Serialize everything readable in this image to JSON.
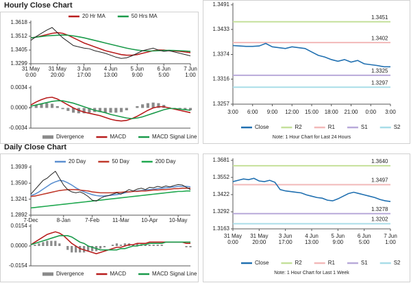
{
  "chart_data": [
    {
      "type": "line",
      "title": "Hourly Close Chart",
      "xlim": [
        0,
        30
      ],
      "xticks": [
        {
          "value": 0,
          "label": [
            "31 May",
            "0:00"
          ]
        },
        {
          "value": 5,
          "label": [
            "31 May",
            "20:00"
          ]
        },
        {
          "value": 10,
          "label": [
            "3 Jun",
            "17:00"
          ]
        },
        {
          "value": 15,
          "label": [
            "4 Jun",
            "13:00"
          ]
        },
        {
          "value": 20,
          "label": [
            "5 Jun",
            "9:00"
          ]
        },
        {
          "value": 25,
          "label": [
            "6 Jun",
            "5:00"
          ]
        },
        {
          "value": 30,
          "label": [
            "7 Jun",
            "1:00"
          ]
        }
      ],
      "ylim": [
        1.3299,
        1.3618
      ],
      "yticks": [
        1.3618,
        1.3512,
        1.3405,
        1.3299
      ],
      "series": [
        {
          "name": "20 Hr MA",
          "color": "#b81c1c",
          "values": [
            1.35,
            1.3505,
            1.3515,
            1.3525,
            1.3535,
            1.354,
            1.3535,
            1.352,
            1.35,
            1.348,
            1.346,
            1.3445,
            1.343,
            1.3415,
            1.34,
            1.339,
            1.338,
            1.337,
            1.3365,
            1.3365,
            1.337,
            1.338,
            1.339,
            1.34,
            1.3405,
            1.3405,
            1.34,
            1.3398,
            1.3395,
            1.339,
            1.3385
          ]
        },
        {
          "name": "50 Hrs MA",
          "color": "#1a9a4a",
          "values": [
            1.35,
            1.3505,
            1.351,
            1.3515,
            1.3518,
            1.352,
            1.3522,
            1.352,
            1.3515,
            1.3508,
            1.35,
            1.349,
            1.348,
            1.347,
            1.346,
            1.345,
            1.344,
            1.343,
            1.342,
            1.3412,
            1.3405,
            1.34,
            1.3398,
            1.3398,
            1.34,
            1.3402,
            1.3403,
            1.3402,
            1.34,
            1.3398,
            1.3395
          ]
        },
        {
          "color": "#222222",
          "values": [
            1.348,
            1.351,
            1.3535,
            1.356,
            1.358,
            1.354,
            1.35,
            1.347,
            1.344,
            1.343,
            1.342,
            1.3415,
            1.34,
            1.339,
            1.338,
            1.3365,
            1.335,
            1.334,
            1.3345,
            1.336,
            1.338,
            1.34,
            1.341,
            1.342,
            1.3405,
            1.3395,
            1.34,
            1.339,
            1.338,
            1.337,
            1.336
          ]
        }
      ]
    },
    {
      "type": "combo",
      "xlim": [
        0,
        30
      ],
      "ylim": [
        -0.0034,
        0.0034
      ],
      "yticks": [
        0.0034,
        {
          "value": 0,
          "label": "0.0000"
        },
        -0.0034
      ],
      "series": [
        {
          "name": "Divergence",
          "style": "bar",
          "color": "#8a8a8a",
          "values": [
            0.0002,
            0.0005,
            0.0007,
            0.0008,
            0.0007,
            0.0003,
            -0.0002,
            -0.0005,
            -0.0008,
            -0.0009,
            -0.0009,
            -0.0008,
            -0.0007,
            -0.0007,
            -0.0008,
            -0.0008,
            -0.0008,
            -0.0007,
            -0.0004,
            0,
            0.0003,
            0.0006,
            0.0008,
            0.0009,
            0.0008,
            0.0005,
            0.0001,
            -0.0001,
            -0.0002,
            -0.0003,
            -0.0004
          ]
        },
        {
          "name": "MACD",
          "style": "line",
          "color": "#b81c1c",
          "values": [
            0.0005,
            0.001,
            0.0014,
            0.0017,
            0.0018,
            0.0015,
            0.001,
            0.0005,
            0,
            -0.0004,
            -0.0007,
            -0.0009,
            -0.0011,
            -0.0013,
            -0.0016,
            -0.0019,
            -0.0021,
            -0.0022,
            -0.0021,
            -0.0018,
            -0.0014,
            -0.0009,
            -0.0004,
            0,
            0.0002,
            0.0002,
            0,
            -0.0002,
            -0.0004,
            -0.0006,
            -0.0008
          ]
        },
        {
          "name": "MACD Signal Line",
          "style": "line",
          "color": "#1a9a4a",
          "values": [
            0.0003,
            0.0005,
            0.0007,
            0.0009,
            0.0011,
            0.0012,
            0.0012,
            0.001,
            0.0008,
            0.0005,
            0.0002,
            -0.0001,
            -0.0004,
            -0.0006,
            -0.0008,
            -0.0011,
            -0.0013,
            -0.0015,
            -0.0017,
            -0.0018,
            -0.0017,
            -0.0015,
            -0.0012,
            -0.0009,
            -0.0006,
            -0.0003,
            -0.0001,
            -0.0001,
            -0.0002,
            -0.0003,
            -0.0004
          ]
        }
      ]
    },
    {
      "type": "line",
      "note": "Note: 1 Hour Chart for Last 24 Hours",
      "xlim": [
        0,
        24
      ],
      "xticks": [
        {
          "value": 0,
          "label": "3:00"
        },
        {
          "value": 3,
          "label": "6:00"
        },
        {
          "value": 6,
          "label": "9:00"
        },
        {
          "value": 9,
          "label": "12:00"
        },
        {
          "value": 12,
          "label": "15:00"
        },
        {
          "value": 15,
          "label": "18:00"
        },
        {
          "value": 18,
          "label": "21:00"
        },
        {
          "value": 21,
          "label": "0:00"
        },
        {
          "value": 24,
          "label": "3:00"
        }
      ],
      "ylim": [
        1.3257,
        1.3491
      ],
      "yticks": [
        1.3491,
        1.3433,
        1.3374,
        1.3316,
        1.3257
      ],
      "series": [
        {
          "name": "Close",
          "color": "#1f6fb0",
          "values": [
            1.3395,
            1.3394,
            1.3393,
            1.3393,
            1.3394,
            1.34,
            1.3392,
            1.339,
            1.3388,
            1.3392,
            1.339,
            1.3388,
            1.338,
            1.3372,
            1.3368,
            1.3362,
            1.3358,
            1.3362,
            1.3356,
            1.336,
            1.3352,
            1.335,
            1.3348,
            1.3345,
            1.3345
          ]
        }
      ],
      "levels": [
        {
          "name": "R2",
          "color": "#c4e09a",
          "value": 1.3451
        },
        {
          "name": "R1",
          "color": "#f2b8b8",
          "value": 1.3402
        },
        {
          "name": "S1",
          "color": "#b8a9d9",
          "value": 1.3325
        },
        {
          "name": "S2",
          "color": "#a8dde8",
          "value": 1.3297
        }
      ]
    },
    {
      "type": "line",
      "title": "Daily Close Chart",
      "xlim": [
        0,
        39
      ],
      "xticks": [
        {
          "value": 0,
          "label": "7-Dec"
        },
        {
          "value": 8,
          "label": "8-Jan"
        },
        {
          "value": 15,
          "label": "7-Feb"
        },
        {
          "value": 22,
          "label": "11-Mar"
        },
        {
          "value": 29,
          "label": "10-Apr"
        },
        {
          "value": 36,
          "label": "10-May"
        }
      ],
      "ylim": [
        1.2892,
        1.3939
      ],
      "yticks": [
        1.3939,
        {
          "value": 1.359,
          "label": "1.3590"
        },
        1.3241,
        1.2892
      ],
      "series": [
        {
          "name": "20 Day",
          "color": "#5b8fd0",
          "values": [
            1.332,
            1.335,
            1.34,
            1.346,
            1.352,
            1.358,
            1.362,
            1.365,
            1.364,
            1.36,
            1.355,
            1.349,
            1.344,
            1.34,
            1.337,
            1.334,
            1.332,
            1.331,
            1.331,
            1.332,
            1.333,
            1.334,
            1.336,
            1.338,
            1.34,
            1.341,
            1.342,
            1.343,
            1.344,
            1.345,
            1.346,
            1.347,
            1.348,
            1.349,
            1.35,
            1.351,
            1.352,
            1.352,
            1.352,
            1.351
          ]
        },
        {
          "name": "50 Day",
          "color": "#c0392b",
          "values": [
            1.33,
            1.331,
            1.333,
            1.335,
            1.337,
            1.339,
            1.341,
            1.343,
            1.344,
            1.345,
            1.345,
            1.345,
            1.344,
            1.343,
            1.342,
            1.34,
            1.339,
            1.338,
            1.338,
            1.338,
            1.338,
            1.339,
            1.339,
            1.34,
            1.34,
            1.341,
            1.341,
            1.342,
            1.342,
            1.343,
            1.344,
            1.344,
            1.345,
            1.345,
            1.346,
            1.347,
            1.347,
            1.348,
            1.348,
            1.348
          ]
        },
        {
          "name": "200 Day",
          "color": "#1fa84f",
          "values": [
            1.305,
            1.306,
            1.307,
            1.308,
            1.309,
            1.31,
            1.311,
            1.312,
            1.313,
            1.314,
            1.315,
            1.316,
            1.317,
            1.318,
            1.319,
            1.32,
            1.321,
            1.322,
            1.323,
            1.324,
            1.325,
            1.326,
            1.327,
            1.328,
            1.329,
            1.33,
            1.331,
            1.332,
            1.333,
            1.334,
            1.335,
            1.336,
            1.337,
            1.338,
            1.339,
            1.34,
            1.341,
            1.341,
            1.342,
            1.342
          ]
        },
        {
          "color": "#222222",
          "values": [
            1.335,
            1.345,
            1.355,
            1.365,
            1.37,
            1.378,
            1.385,
            1.37,
            1.355,
            1.345,
            1.34,
            1.338,
            1.34,
            1.336,
            1.33,
            1.322,
            1.32,
            1.326,
            1.33,
            1.332,
            1.335,
            1.338,
            1.335,
            1.34,
            1.345,
            1.342,
            1.346,
            1.348,
            1.345,
            1.35,
            1.349,
            1.352,
            1.35,
            1.353,
            1.351,
            1.354,
            1.356,
            1.355,
            1.35,
            1.345
          ]
        }
      ]
    },
    {
      "type": "combo",
      "xlim": [
        0,
        39
      ],
      "ylim": [
        -0.0154,
        0.0154
      ],
      "yticks": [
        0.0154,
        {
          "value": 0,
          "label": "0.0000"
        },
        -0.0154
      ],
      "series": [
        {
          "name": "Divergence",
          "style": "bar",
          "color": "#8a8a8a",
          "values": [
            0,
            0.001,
            0.002,
            0.003,
            0.004,
            0.004,
            0.004,
            0.002,
            0,
            -0.003,
            -0.005,
            -0.005,
            -0.005,
            -0.005,
            -0.004,
            -0.004,
            -0.004,
            -0.002,
            -0.001,
            0,
            0.001,
            0.002,
            0.001,
            0.002,
            0.002,
            0.001,
            0.002,
            0.001,
            0.001,
            0.001,
            0.001,
            0.001,
            0.001,
            0,
            0,
            0,
            0,
            0,
            -0.001,
            -0.001
          ]
        },
        {
          "name": "MACD",
          "style": "line",
          "color": "#b81c1c",
          "values": [
            0.001,
            0.003,
            0.005,
            0.007,
            0.009,
            0.01,
            0.011,
            0.01,
            0.008,
            0.005,
            0.002,
            0,
            -0.002,
            -0.003,
            -0.004,
            -0.005,
            -0.006,
            -0.005,
            -0.004,
            -0.003,
            -0.002,
            -0.001,
            -0.001,
            0,
            0.001,
            0.001,
            0.002,
            0.002,
            0.002,
            0.003,
            0.003,
            0.003,
            0.003,
            0.003,
            0.003,
            0.003,
            0.003,
            0.003,
            0.002,
            0.002
          ]
        },
        {
          "name": "MACD Signal Line",
          "style": "line",
          "color": "#1a9a4a",
          "values": [
            0.001,
            0.002,
            0.003,
            0.004,
            0.005,
            0.006,
            0.007,
            0.008,
            0.008,
            0.008,
            0.007,
            0.005,
            0.003,
            0.002,
            0,
            -0.001,
            -0.002,
            -0.003,
            -0.003,
            -0.003,
            -0.003,
            -0.003,
            -0.002,
            -0.002,
            -0.001,
            0,
            0,
            0.001,
            0.001,
            0.002,
            0.002,
            0.002,
            0.002,
            0.003,
            0.003,
            0.003,
            0.003,
            0.003,
            0.003,
            0.003
          ]
        }
      ]
    },
    {
      "type": "line",
      "note": "Note: 1 Hour Chart for Last 1 Week",
      "xlim": [
        0,
        30
      ],
      "xticks": [
        {
          "value": 0,
          "label": [
            "31 May",
            "0:00"
          ]
        },
        {
          "value": 5,
          "label": [
            "31 May",
            "20:00"
          ]
        },
        {
          "value": 10,
          "label": [
            "3 Jun",
            "17:00"
          ]
        },
        {
          "value": 15,
          "label": [
            "4 Jun",
            "13:00"
          ]
        },
        {
          "value": 20,
          "label": [
            "5 Jun",
            "9:00"
          ]
        },
        {
          "value": 25,
          "label": [
            "6 Jun",
            "5:00"
          ]
        },
        {
          "value": 30,
          "label": [
            "7 Jun",
            "1:00"
          ]
        }
      ],
      "ylim": [
        1.3163,
        1.3681
      ],
      "yticks": [
        1.3681,
        1.3552,
        1.3422,
        1.3292,
        1.3163
      ],
      "series": [
        {
          "name": "Close",
          "color": "#1f6fb0",
          "values": [
            1.352,
            1.353,
            1.354,
            1.3535,
            1.3545,
            1.3525,
            1.352,
            1.353,
            1.3515,
            1.346,
            1.345,
            1.3445,
            1.344,
            1.3435,
            1.342,
            1.341,
            1.34,
            1.3395,
            1.338,
            1.3375,
            1.339,
            1.341,
            1.343,
            1.344,
            1.343,
            1.342,
            1.341,
            1.34,
            1.3385,
            1.3375,
            1.337
          ]
        }
      ],
      "levels": [
        {
          "name": "R2",
          "color": "#c4e09a",
          "value": 1.364,
          "value_label": "1.3640"
        },
        {
          "name": "R1",
          "color": "#f2b8b8",
          "value": 1.3497
        },
        {
          "name": "S1",
          "color": "#b8a9d9",
          "value": 1.3278
        },
        {
          "name": "S2",
          "color": "#a8dde8",
          "value": 1.3202
        }
      ]
    }
  ]
}
